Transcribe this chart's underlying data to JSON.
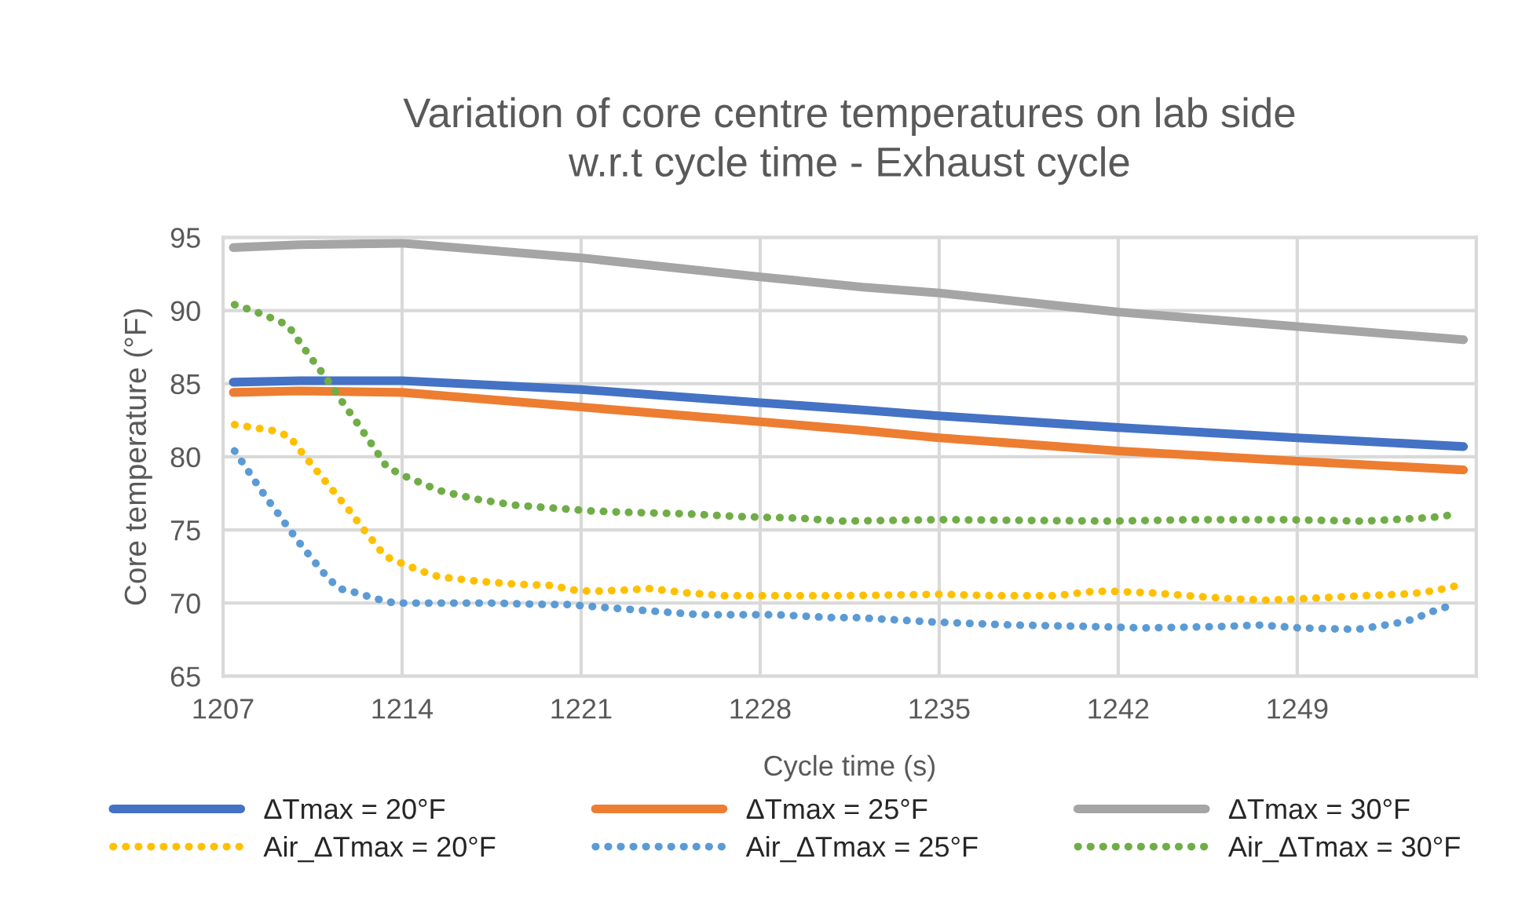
{
  "chart_data": {
    "type": "line",
    "title": "Variation of core centre temperatures on lab side\nw.r.t cycle time - Exhaust cycle",
    "xlabel": "Cycle time (s)",
    "ylabel": "Core temperature (°F)",
    "xlim": [
      1207,
      1256
    ],
    "xticks": [
      1207,
      1214,
      1221,
      1228,
      1235,
      1242,
      1249
    ],
    "ylim": [
      65,
      95
    ],
    "yticks": [
      65,
      70,
      75,
      80,
      85,
      90,
      95
    ],
    "grid": true,
    "legend": "bottom",
    "marker": "none",
    "series": [
      {
        "name": "ΔTmax = 20°F",
        "color": "#4472c4",
        "line_style": "solid",
        "x": [
          1207.4,
          1210,
          1214,
          1221,
          1228,
          1232,
          1235,
          1242,
          1249,
          1255.5
        ],
        "values": [
          85.1,
          85.2,
          85.2,
          84.6,
          83.7,
          83.2,
          82.8,
          82.0,
          81.3,
          80.7
        ]
      },
      {
        "name": "ΔTmax = 25°F",
        "color": "#ed7d31",
        "line_style": "solid",
        "x": [
          1207.4,
          1210,
          1214,
          1221,
          1228,
          1232,
          1235,
          1242,
          1249,
          1255.5
        ],
        "values": [
          84.4,
          84.5,
          84.4,
          83.4,
          82.4,
          81.8,
          81.3,
          80.4,
          79.7,
          79.1
        ]
      },
      {
        "name": "ΔTmax = 30°F",
        "color": "#a5a5a5",
        "line_style": "solid",
        "x": [
          1207.4,
          1210,
          1214,
          1221,
          1228,
          1232,
          1235,
          1242,
          1249,
          1255.5
        ],
        "values": [
          94.3,
          94.5,
          94.6,
          93.6,
          92.3,
          91.6,
          91.2,
          89.9,
          88.9,
          88.0
        ]
      },
      {
        "name": "Air_ΔTmax = 20°F",
        "color": "#ffc000",
        "line_style": "dotted",
        "x": [
          1207.45,
          1208.18,
          1208.93,
          1209.59,
          1210.08,
          1210.54,
          1211.01,
          1211.48,
          1211.95,
          1212.42,
          1212.88,
          1213.33,
          1214.01,
          1214.74,
          1215.43,
          1216.92,
          1218.38,
          1219.89,
          1220.65,
          1221.4,
          1222.89,
          1223.62,
          1225.11,
          1226.61,
          1228.1,
          1231.09,
          1235,
          1237.29,
          1239.53,
          1241.04,
          1241.8,
          1243.31,
          1244.78,
          1246.29,
          1247.78,
          1249.29,
          1251.53,
          1253.04,
          1253.78,
          1254.53,
          1255.27
        ],
        "values": [
          82.2,
          82.0,
          81.8,
          81.4,
          80.3,
          79.3,
          78.3,
          77.3,
          76.3,
          75.2,
          74.2,
          73.2,
          72.7,
          72.2,
          71.8,
          71.5,
          71.3,
          71.2,
          70.9,
          70.8,
          70.9,
          71.0,
          70.7,
          70.5,
          70.5,
          70.5,
          70.6,
          70.5,
          70.5,
          70.8,
          70.8,
          70.7,
          70.5,
          70.3,
          70.2,
          70.3,
          70.5,
          70.6,
          70.7,
          70.9,
          71.2
        ]
      },
      {
        "name": "Air_ΔTmax = 25°F",
        "color": "#5b9bd5",
        "line_style": "dotted",
        "x": [
          1207.45,
          1207.88,
          1208.3,
          1208.73,
          1209.16,
          1209.61,
          1210.08,
          1210.54,
          1211.01,
          1211.52,
          1212.23,
          1212.97,
          1213.7,
          1215.19,
          1217.47,
          1219.69,
          1220.44,
          1221.2,
          1221.93,
          1222.68,
          1223.44,
          1224.17,
          1224.92,
          1225.68,
          1227.16,
          1228.65,
          1230.89,
          1231.84,
          1234.84,
          1237.84,
          1240.84,
          1243.08,
          1246.08,
          1247.59,
          1249.08,
          1251.33,
          1252.82,
          1253.55,
          1254.24,
          1254.94
        ],
        "values": [
          80.4,
          79.3,
          78.2,
          77.1,
          76.1,
          75.0,
          73.9,
          72.9,
          71.9,
          71.0,
          70.7,
          70.3,
          70.0,
          70.0,
          70.0,
          69.9,
          69.9,
          69.8,
          69.7,
          69.6,
          69.5,
          69.4,
          69.3,
          69.2,
          69.2,
          69.2,
          69.0,
          69.0,
          68.7,
          68.5,
          68.4,
          68.3,
          68.4,
          68.5,
          68.3,
          68.2,
          68.6,
          68.9,
          69.4,
          69.8
        ]
      },
      {
        "name": "Air_ΔTmax = 30°F",
        "color": "#70ad47",
        "line_style": "dotted",
        "x": [
          1207.45,
          1208.16,
          1208.87,
          1209.53,
          1209.97,
          1210.42,
          1210.85,
          1211.3,
          1211.72,
          1212.13,
          1212.56,
          1212.99,
          1213.4,
          1214.07,
          1214.76,
          1215.43,
          1216.16,
          1216.92,
          1217.65,
          1218.38,
          1219.87,
          1221.38,
          1222.87,
          1225.11,
          1227.37,
          1229.61,
          1231.09,
          1235,
          1241.8,
          1244.8,
          1248.55,
          1251.55,
          1253.8,
          1254.55,
          1255.3
        ],
        "values": [
          90.4,
          90.0,
          89.5,
          89.0,
          87.9,
          86.8,
          85.8,
          84.7,
          83.6,
          82.6,
          81.5,
          80.4,
          79.3,
          78.7,
          78.2,
          77.7,
          77.4,
          77.1,
          76.9,
          76.7,
          76.5,
          76.3,
          76.2,
          76.1,
          75.9,
          75.8,
          75.6,
          75.7,
          75.6,
          75.7,
          75.7,
          75.6,
          75.8,
          75.9,
          76.1
        ]
      }
    ]
  }
}
